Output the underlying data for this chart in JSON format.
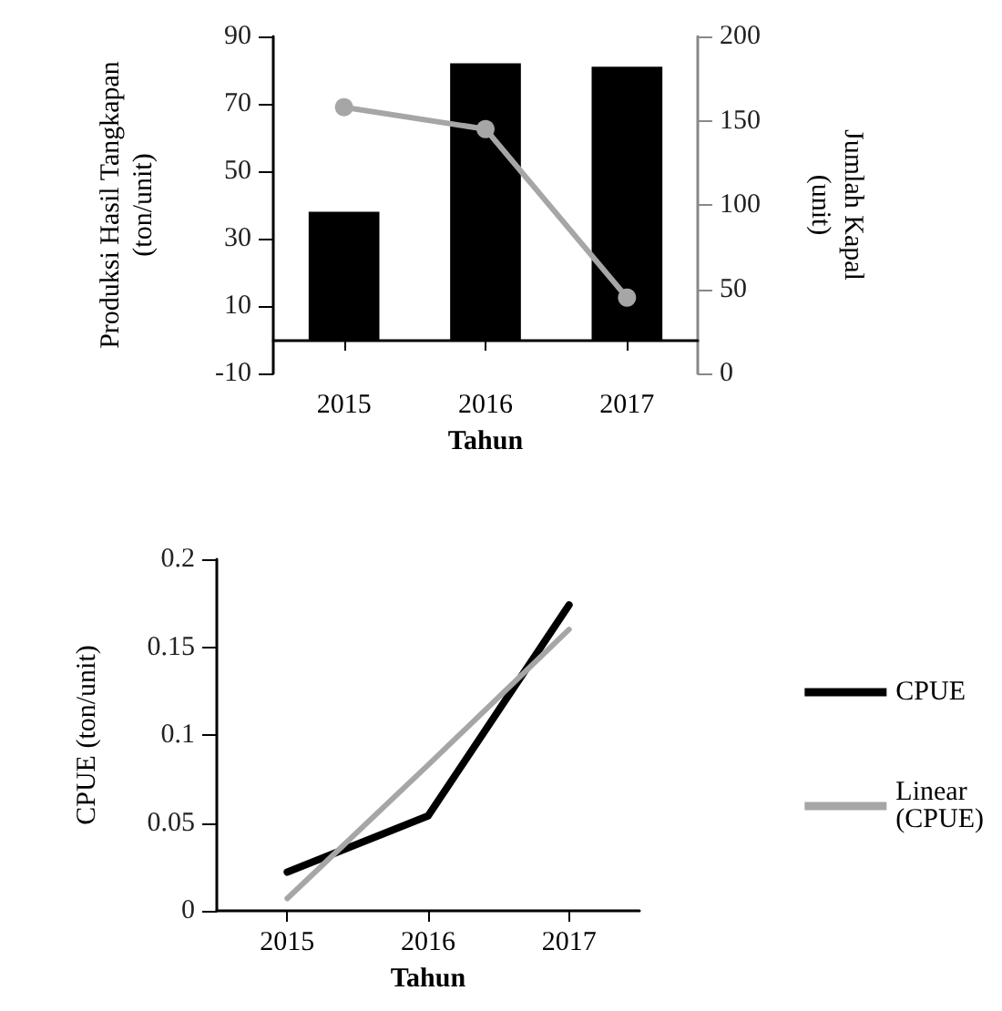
{
  "chart_data": [
    {
      "type": "bar",
      "categories": [
        "2015",
        "2016",
        "2017"
      ],
      "xlabel": "Tahun",
      "ylabel": "Produksi Hasil Tangkapan (ton/unit)",
      "y2label": "Jumlah Kapal (unit)",
      "ylim": [
        -10,
        90
      ],
      "yticks": [
        -10,
        10,
        30,
        50,
        70,
        90
      ],
      "y2lim": [
        0,
        200
      ],
      "y2ticks": [
        0,
        50,
        100,
        150,
        200
      ],
      "grid": false,
      "legend": false,
      "series": [
        {
          "color": "#000000",
          "values": [
            38,
            82,
            81
          ]
        },
        {
          "type": "line",
          "axis": "y2",
          "color": "#a6a6a6",
          "marker": "circle",
          "values": [
            158,
            145,
            45
          ]
        }
      ]
    },
    {
      "type": "line",
      "categories": [
        "2015",
        "2016",
        "2017"
      ],
      "xlabel": "Tahun",
      "ylabel": "CPUE (ton/unit)",
      "ylim": [
        0,
        0.2
      ],
      "yticks": [
        0,
        0.05,
        0.1,
        0.15,
        0.2
      ],
      "grid": false,
      "legend": "right",
      "marker": "none",
      "series": [
        {
          "name": "CPUE",
          "color": "#000000",
          "values": [
            0.022,
            0.054,
            0.174
          ]
        },
        {
          "name": "Linear (CPUE)",
          "color": "#a6a6a6",
          "values": [
            0.007,
            0.083,
            0.16
          ]
        }
      ]
    }
  ]
}
